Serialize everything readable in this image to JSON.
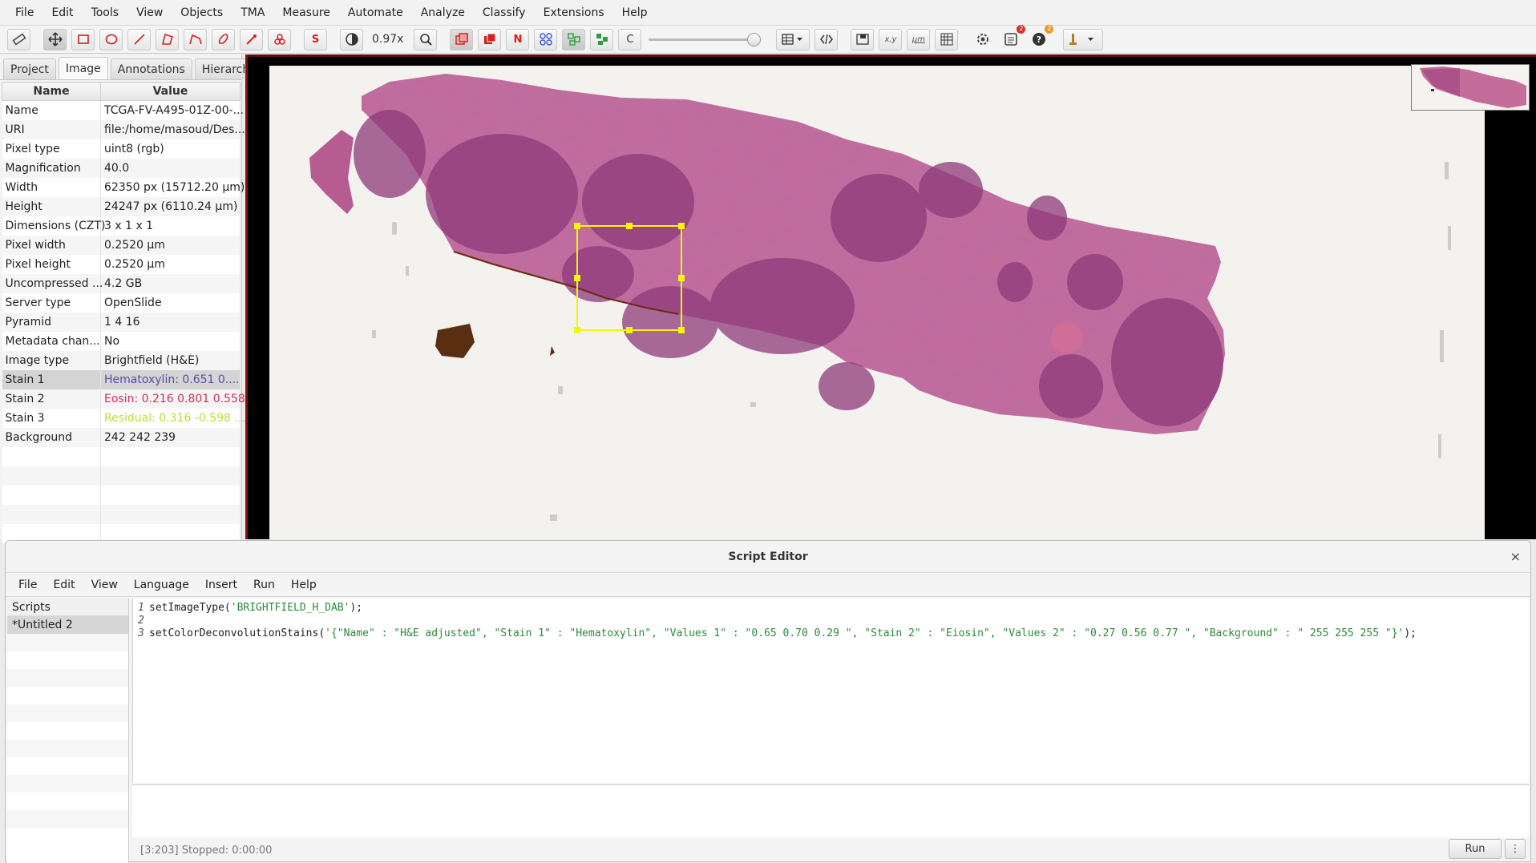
{
  "menubar": [
    "File",
    "Edit",
    "Tools",
    "View",
    "Objects",
    "TMA",
    "Measure",
    "Automate",
    "Analyze",
    "Classify",
    "Extensions",
    "Help"
  ],
  "toolbar": {
    "zoom": "0.97x",
    "brightness_label": "S",
    "n_label": "N",
    "c_label": "C",
    "xy_label": "x,y",
    "um_label": "µm",
    "badge_log": "2",
    "badge_help": "2",
    "colors": {
      "red": "#d62020",
      "blue": "#3a5bd9",
      "green": "#2e9e3e",
      "badge_red": "#d63030",
      "badge_orange": "#e89a2a"
    }
  },
  "left_tabs": [
    "Project",
    "Image",
    "Annotations",
    "Hierarch"
  ],
  "props_header": {
    "name": "Name",
    "value": "Value"
  },
  "props": [
    {
      "name": "Name",
      "value": "TCGA-FV-A495-01Z-00-...",
      "color": ""
    },
    {
      "name": "URI",
      "value": "file:/home/masoud/Des...",
      "color": ""
    },
    {
      "name": "Pixel type",
      "value": "uint8 (rgb)",
      "color": ""
    },
    {
      "name": "Magnification",
      "value": "40.0",
      "color": ""
    },
    {
      "name": "Width",
      "value": "62350 px (15712.20 µm)",
      "color": ""
    },
    {
      "name": "Height",
      "value": "24247 px (6110.24 µm)",
      "color": ""
    },
    {
      "name": "Dimensions (CZT)",
      "value": "3 x 1 x 1",
      "color": ""
    },
    {
      "name": "Pixel width",
      "value": "0.2520 µm",
      "color": ""
    },
    {
      "name": "Pixel height",
      "value": "0.2520 µm",
      "color": ""
    },
    {
      "name": "Uncompressed ...",
      "value": "4.2 GB",
      "color": ""
    },
    {
      "name": "Server type",
      "value": "OpenSlide",
      "color": ""
    },
    {
      "name": "Pyramid",
      "value": "1 4 16",
      "color": ""
    },
    {
      "name": "Metadata chan...",
      "value": "No",
      "color": ""
    },
    {
      "name": "Image type",
      "value": "Brightfield (H&E)",
      "color": ""
    },
    {
      "name": "Stain 1",
      "value": "Hematoxylin: 0.651 0....",
      "color": "#5a4aa8"
    },
    {
      "name": "Stain 2",
      "value": "Eosin: 0.216 0.801 0.558",
      "color": "#d0305a"
    },
    {
      "name": "Stain 3",
      "value": "Residual: 0.316 -0.598 ...",
      "color": "#b8e030"
    },
    {
      "name": "Background",
      "value": "242 242 239",
      "color": ""
    }
  ],
  "editor": {
    "title": "Script Editor",
    "close": "×",
    "menu": [
      "File",
      "Edit",
      "View",
      "Language",
      "Insert",
      "Run",
      "Help"
    ],
    "scripts_header": "Scripts",
    "scripts": [
      "*Untitled 2"
    ],
    "lines": [
      {
        "num": "1",
        "pre": "setImageType(",
        "str": "'BRIGHTFIELD_H_DAB'",
        "post": ");"
      },
      {
        "num": "2",
        "pre": "",
        "str": "",
        "post": ""
      },
      {
        "num": "3",
        "pre": "setColorDeconvolutionStains(",
        "str": "'{\"Name\" : \"H&E adjusted\", \"Stain 1\" : \"Hematoxylin\", \"Values 1\" : \"0.65 0.70 0.29 \", \"Stain 2\" : \"Eiosin\", \"Values 2\" : \"0.27 0.56 0.77 \", \"Background\" : \" 255 255 255 \"}'",
        "post": ");"
      }
    ],
    "status": "[3:203]  Stopped: 0:00:00",
    "run_label": "Run",
    "more_label": "⋮"
  }
}
